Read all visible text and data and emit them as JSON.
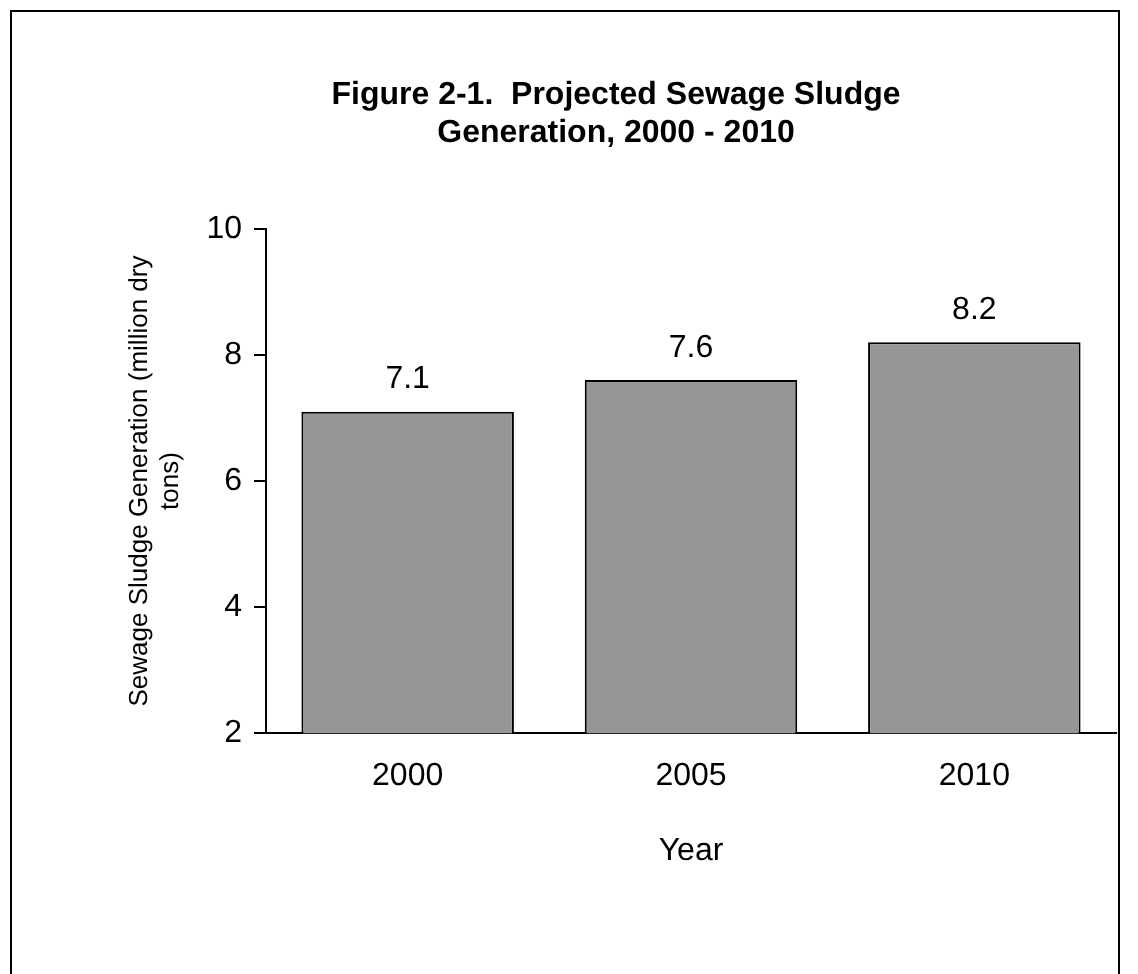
{
  "chart_data": {
    "type": "bar",
    "title": "Figure 2-1.  Projected Sewage Sludge Generation, 2000 - 2010",
    "xlabel": "Year",
    "ylabel": "Sewage Sludge Generation (million dry tons)",
    "categories": [
      "2000",
      "2005",
      "2010"
    ],
    "values": [
      7.1,
      7.6,
      8.2
    ],
    "color": "#969696",
    "ylim": [
      2,
      10
    ],
    "yticks": [
      2,
      4,
      6,
      8,
      10
    ],
    "grid": false,
    "data_labels": true
  }
}
